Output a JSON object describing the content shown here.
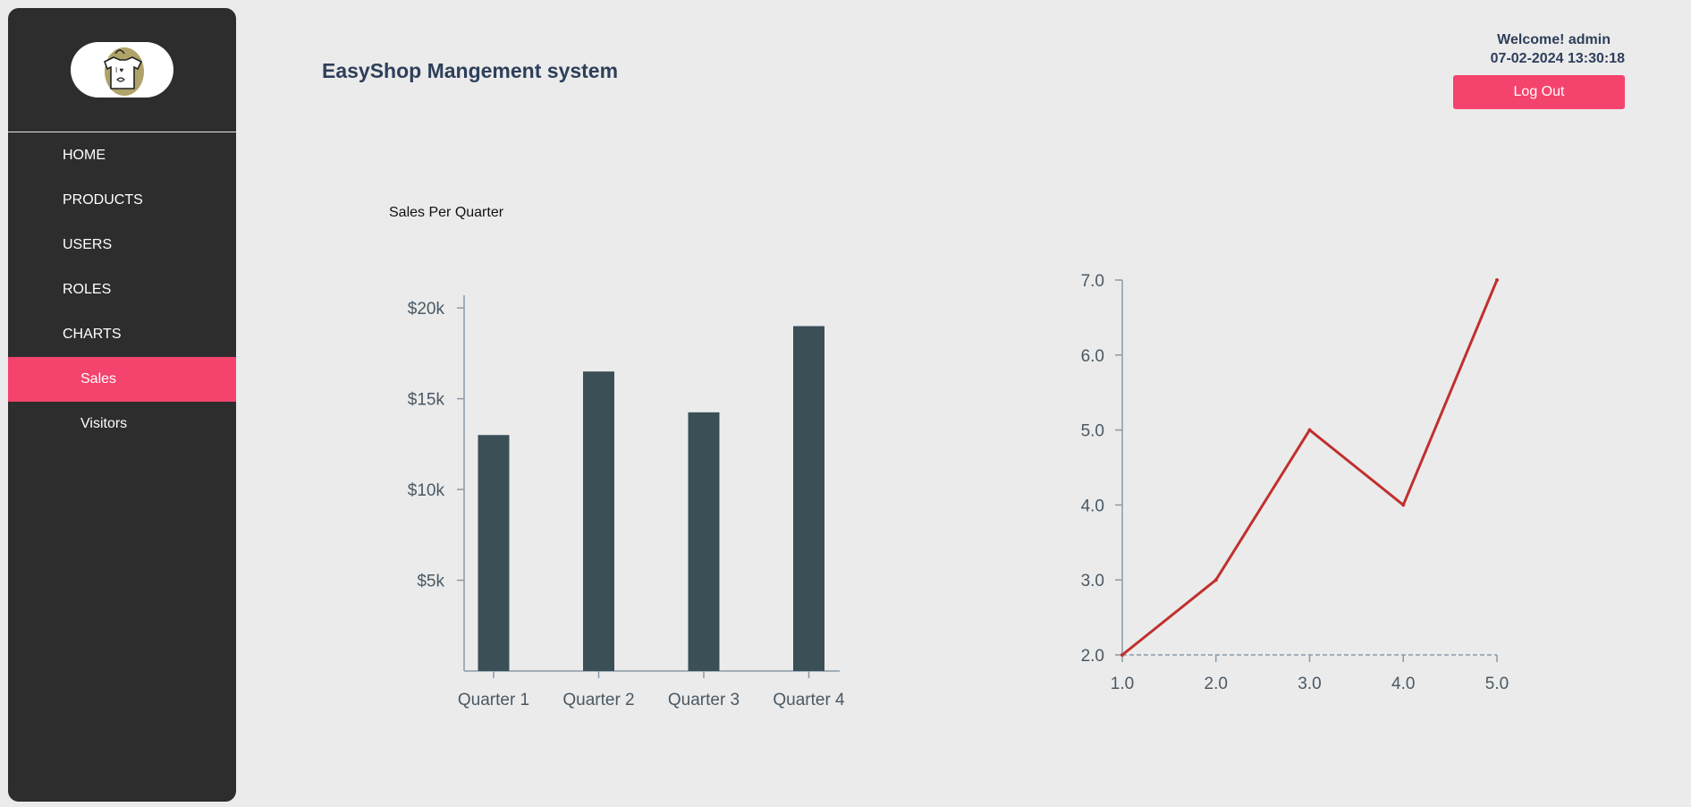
{
  "sidebar": {
    "logo_icon": "tshirt-logo-icon",
    "logo_text": "I ♥",
    "items": [
      {
        "label": "HOME",
        "name": "sidebar-item-home",
        "sub": false,
        "active": false
      },
      {
        "label": "PRODUCTS",
        "name": "sidebar-item-products",
        "sub": false,
        "active": false
      },
      {
        "label": "USERS",
        "name": "sidebar-item-users",
        "sub": false,
        "active": false
      },
      {
        "label": "ROLES",
        "name": "sidebar-item-roles",
        "sub": false,
        "active": false
      },
      {
        "label": "CHARTS",
        "name": "sidebar-item-charts",
        "sub": false,
        "active": false
      },
      {
        "label": "Sales",
        "name": "sidebar-item-sales",
        "sub": true,
        "active": true
      },
      {
        "label": "Visitors",
        "name": "sidebar-item-visitors",
        "sub": true,
        "active": false
      }
    ]
  },
  "header": {
    "title": "EasyShop Mangement system",
    "welcome": "Welcome! admin",
    "datetime": "07-02-2024 13:30:18",
    "logout_label": "Log Out"
  },
  "colors": {
    "accent": "#f4436c",
    "sidebar_bg": "#2d2d2d",
    "bar_fill": "#3b4f57",
    "line_stroke": "#c0302f",
    "axis": "#8a9aa8"
  },
  "chart_data": [
    {
      "type": "bar",
      "title": "Sales Per Quarter",
      "categories": [
        "Quarter 1",
        "Quarter 2",
        "Quarter 3",
        "Quarter 4"
      ],
      "values": [
        13000,
        16500,
        14250,
        19000
      ],
      "ytick_values": [
        5000,
        10000,
        15000,
        20000
      ],
      "ytick_labels": [
        "$5k",
        "$10k",
        "$15k",
        "$20k"
      ],
      "ylim": [
        0,
        20700
      ],
      "xlabel": "",
      "ylabel": ""
    },
    {
      "type": "line",
      "title": "",
      "x": [
        1,
        2,
        3,
        4,
        5
      ],
      "y": [
        2,
        3,
        5,
        4,
        7
      ],
      "xtick_labels": [
        "1.0",
        "2.0",
        "3.0",
        "4.0",
        "5.0"
      ],
      "ytick_values": [
        2,
        3,
        4,
        5,
        6,
        7
      ],
      "ytick_labels": [
        "2.0",
        "3.0",
        "4.0",
        "5.0",
        "6.0",
        "7.0"
      ],
      "xlim": [
        1,
        5
      ],
      "ylim": [
        2,
        7
      ],
      "xlabel": "",
      "ylabel": ""
    }
  ]
}
